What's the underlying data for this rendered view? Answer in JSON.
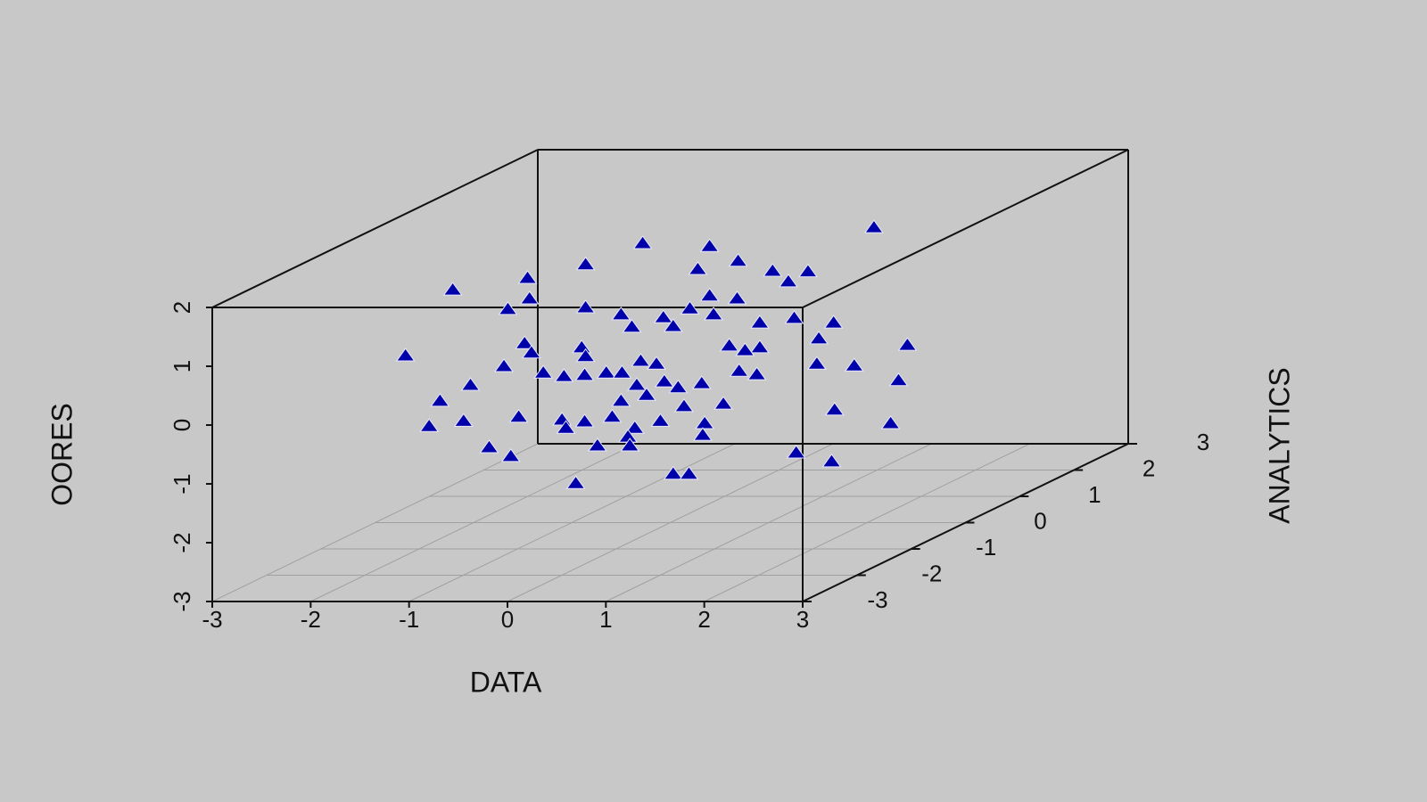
{
  "chart_data": {
    "type": "scatter3d",
    "x_label": "DATA",
    "y_label": "ANALYTICS",
    "z_label": "OORES",
    "xlim": [
      -3,
      3
    ],
    "ylim": [
      -3,
      3
    ],
    "zlim": [
      -3,
      2
    ],
    "xticks": [
      -3,
      -2,
      -1,
      0,
      1,
      2,
      3
    ],
    "yticks": [
      -3,
      -2,
      -1,
      0,
      1,
      2,
      3
    ],
    "zticks": [
      -3,
      -2,
      -1,
      0,
      1,
      2
    ],
    "grid": true,
    "color": "#0000aa",
    "x": [
      2.07,
      -0.28,
      0.4,
      -0.86,
      0.69,
      0.28,
      1.04,
      1.4,
      -1.45,
      1.2,
      -2.21,
      -1.43,
      0.4,
      0.68,
      -1.65,
      -0.86,
      0.2,
      -0.5,
      -0.07,
      0.44,
      1.26,
      1.66,
      -0.39,
      0.03,
      0.91,
      1.51,
      -1.48,
      -0.9,
      0.6,
      0.91,
      2.41,
      -2.69,
      -1.41,
      -0.86,
      0.76,
      -1.69,
      -0.3,
      -0.14,
      1.49,
      1.87,
      -1.29,
      -1.08,
      -0.87,
      -0.65,
      -0.49,
      0.7,
      0.88,
      -2.03,
      -0.34,
      -0.06,
      0.32,
      2.32,
      0.08,
      -2.34,
      -0.24,
      -0.5,
      0.54,
      0.14,
      1.67,
      -1.54,
      -2.1,
      -1.1,
      -0.87,
      -0.59,
      -0.1,
      0.35,
      2.24,
      -2.45,
      -1.06,
      -0.36,
      0.33,
      -0.43,
      -0.74,
      -1.84,
      -0.41,
      1.28,
      -1.62,
      1.64,
      0.03,
      0.19,
      -0.96
    ],
    "y": [
      0,
      0,
      0,
      0,
      0,
      0,
      0,
      0,
      0,
      0,
      0,
      0,
      0,
      0,
      0,
      0,
      0,
      0,
      0,
      0,
      0,
      0,
      0,
      0,
      0,
      0,
      0,
      0,
      0,
      0,
      0,
      0,
      0,
      0,
      0,
      0,
      0,
      0,
      0,
      0,
      0,
      0,
      0,
      0,
      0,
      0,
      0,
      0,
      0,
      0,
      0,
      0,
      0,
      0,
      0,
      0,
      0,
      0,
      0,
      0,
      0,
      0,
      0,
      0,
      0,
      0,
      0,
      0,
      0,
      0,
      0,
      0,
      0,
      0,
      0,
      0,
      0,
      0,
      0,
      0,
      0
    ],
    "z": [
      2.02,
      1.75,
      1.7,
      1.39,
      1.45,
      1.31,
      1.28,
      1.27,
      1.16,
      1.1,
      0.96,
      0.81,
      0.86,
      0.81,
      0.63,
      0.66,
      0.64,
      0.54,
      0.49,
      0.54,
      0.48,
      0.4,
      0.33,
      0.34,
      0.4,
      0.13,
      0.05,
      -0.02,
      0.01,
      -0.02,
      0.02,
      -0.16,
      -0.11,
      -0.17,
      -0.07,
      -0.34,
      -0.25,
      -0.3,
      -0.3,
      -0.33,
      -0.45,
      -0.51,
      -0.49,
      -0.45,
      -0.45,
      -0.42,
      -0.48,
      -0.66,
      -0.66,
      -0.6,
      -0.63,
      -0.58,
      -0.7,
      -0.93,
      -0.83,
      -0.93,
      -0.98,
      -1.02,
      -1.08,
      -1.2,
      -1.27,
      -1.25,
      -1.28,
      -1.2,
      -1.27,
      -1.31,
      -1.31,
      -1.36,
      -1.39,
      -1.39,
      -1.51,
      -1.54,
      -1.69,
      -1.72,
      -1.69,
      -1.81,
      -1.87,
      -1.96,
      -2.17,
      -2.17,
      -2.33
    ]
  }
}
